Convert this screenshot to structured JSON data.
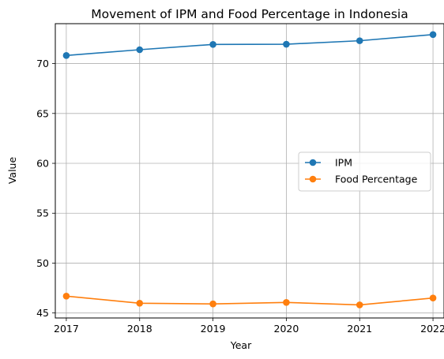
{
  "chart_data": {
    "type": "line",
    "title": "Movement of IPM and Food Percentage in Indonesia",
    "xlabel": "Year",
    "ylabel": "Value",
    "x": [
      2017,
      2018,
      2019,
      2020,
      2021,
      2022
    ],
    "xlim": [
      2016.85,
      2022.15
    ],
    "ylim": [
      44.5,
      74.0
    ],
    "yticks": [
      45,
      50,
      55,
      60,
      65,
      70
    ],
    "grid": true,
    "legend_position": "center-right",
    "series": [
      {
        "name": "IPM",
        "color": "#1f77b4",
        "marker": "circle",
        "values": [
          70.81,
          71.39,
          71.92,
          71.94,
          72.29,
          72.91
        ]
      },
      {
        "name": "Food Percentage",
        "color": "#ff7f0e",
        "marker": "circle",
        "values": [
          46.69,
          45.98,
          45.91,
          46.06,
          45.81,
          46.5
        ]
      }
    ]
  }
}
